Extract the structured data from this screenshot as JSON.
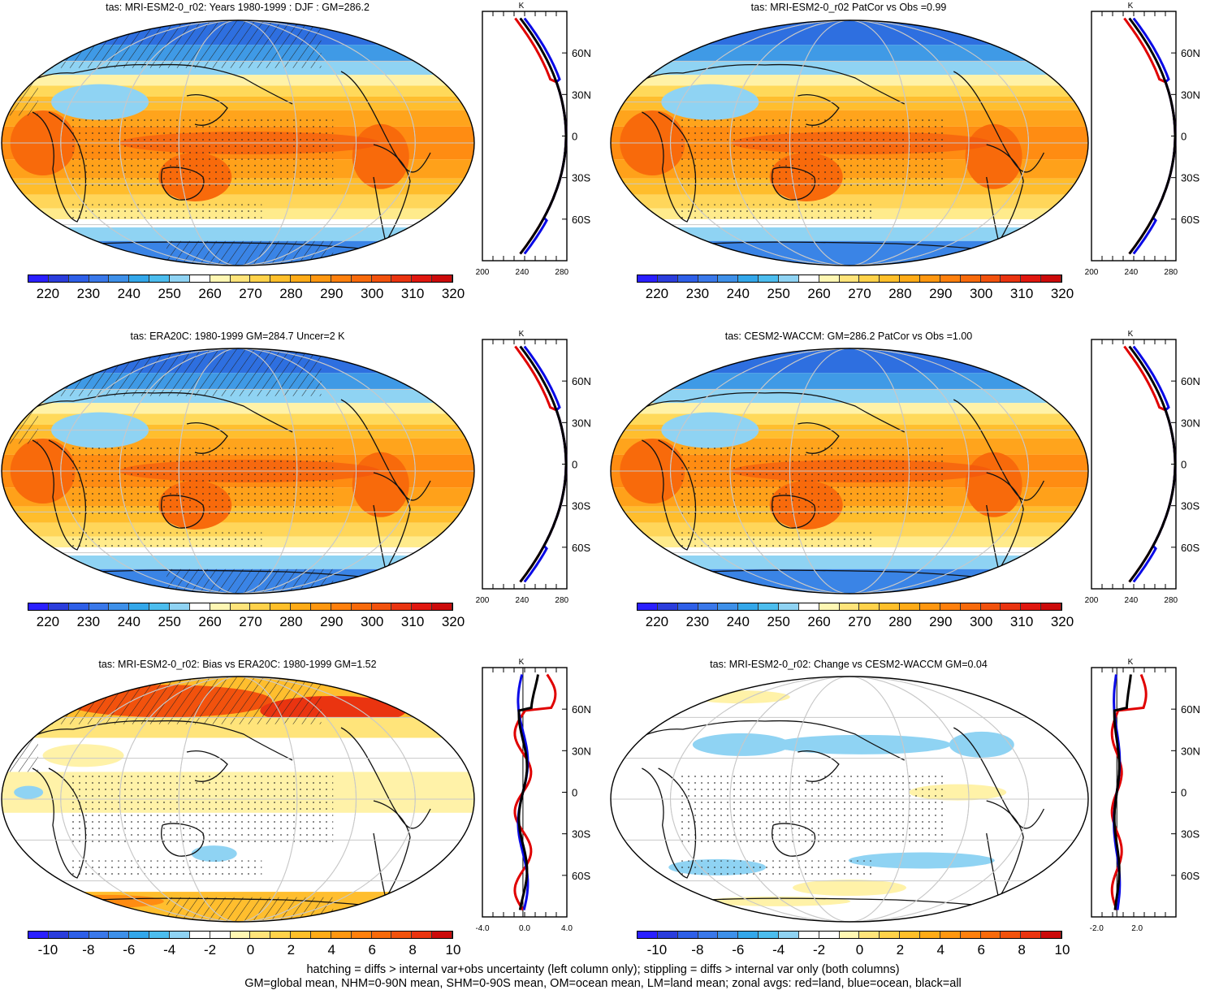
{
  "panels": [
    {
      "title": "tas: MRI-ESM2-0_r02: Years 1980-1999 : DJF : GM=286.2",
      "kind": "abs",
      "hatch": true
    },
    {
      "title": "tas: MRI-ESM2-0_r02 PatCor vs Obs =0.99",
      "kind": "abs",
      "hatch": false
    },
    {
      "title": "tas: ERA20C: 1980-1999 GM=284.7 Uncer=2 K",
      "kind": "abs",
      "hatch": true
    },
    {
      "title": "tas: CESM2-WACCM: GM=286.2 PatCor vs Obs =1.00",
      "kind": "abs",
      "hatch": false
    },
    {
      "title": "tas: MRI-ESM2-0_r02: Bias vs ERA20C: 1980-1999 GM=1.52",
      "kind": "bias",
      "hatch": true
    },
    {
      "title": "tas: MRI-ESM2-0_r02: Change vs CESM2-WACCM GM=0.04",
      "kind": "change",
      "hatch": false
    }
  ],
  "colorbars": {
    "abs": {
      "labels": [
        "220",
        "230",
        "240",
        "250",
        "260",
        "270",
        "280",
        "290",
        "300",
        "310",
        "320"
      ],
      "colors": [
        "#2a1fff",
        "#2b3ddc",
        "#2e5fe8",
        "#3a78ea",
        "#3e90e9",
        "#33a7ea",
        "#4cbdee",
        "#8fd3f3",
        "#ffffff",
        "#fff7b3",
        "#ffe47a",
        "#ffd24a",
        "#ffbf2a",
        "#ffab17",
        "#ff9710",
        "#ff800d",
        "#f86a0b",
        "#f2520d",
        "#ea3410",
        "#e0170f",
        "#cc0a0a"
      ]
    },
    "diff": {
      "labels": [
        "-10",
        "-8",
        "-6",
        "-4",
        "-2",
        "0",
        "2",
        "4",
        "6",
        "8",
        "10"
      ],
      "colors": [
        "#2a1fff",
        "#2b3ddc",
        "#2e5fe8",
        "#3a78ea",
        "#3e90e9",
        "#33a7ea",
        "#4cbdee",
        "#8fd3f3",
        "#ffffff",
        "#ffffff",
        "#fff7b3",
        "#ffe47a",
        "#ffd24a",
        "#ffbf2a",
        "#ffab17",
        "#ff9710",
        "#ff800d",
        "#f86a0b",
        "#f2520d",
        "#ea3410",
        "#cc0a0a"
      ]
    }
  },
  "zonal_axes": {
    "abs": {
      "unit": "K",
      "xticks": [
        "200",
        "240",
        "280"
      ],
      "lat_labels": [
        "60N",
        "30N",
        "0",
        "30S",
        "60S"
      ]
    },
    "bias": {
      "unit": "K",
      "xticks": [
        "-4.0",
        "0.0",
        "4.0"
      ],
      "lat_labels": [
        "60N",
        "30N",
        "0",
        "30S",
        "60S"
      ]
    },
    "change": {
      "unit": "K",
      "xticks": [
        "-2.0",
        "2.0"
      ],
      "lat_labels": [
        "60N",
        "30N",
        "0",
        "30S",
        "60S"
      ]
    }
  },
  "footer": {
    "line1": "hatching = diffs > internal var+obs uncertainty (left column only); stippling = diffs > internal var only (both columns)",
    "line2": "GM=global mean, NHM=0-90N mean, SHM=0-90S mean, OM=ocean mean, LM=land mean; zonal avgs: red=land, blue=ocean, black=all"
  }
}
